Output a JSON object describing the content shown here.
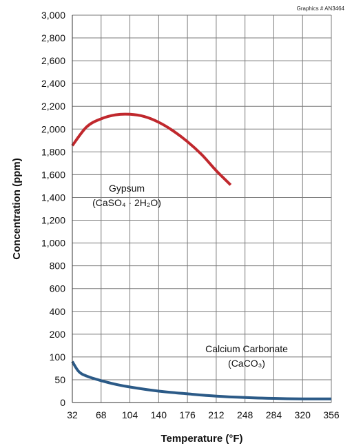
{
  "graphics_id": "Graphics # AN3464",
  "chart_data": {
    "type": "line",
    "xlabel": "Temperature (°F)",
    "ylabel": "Concentration (ppm)",
    "x_ticks": [
      32,
      68,
      104,
      140,
      176,
      212,
      248,
      284,
      320,
      356
    ],
    "xlim": [
      32,
      356
    ],
    "y_tick_labels": [
      "0",
      "50",
      "100",
      "200",
      "400",
      "600",
      "800",
      "1,000",
      "1,200",
      "1,400",
      "1,600",
      "1,800",
      "2,000",
      "2,200",
      "2,400",
      "2,600",
      "2,800",
      "3,000"
    ],
    "y_tick_values": [
      0,
      50,
      100,
      200,
      400,
      600,
      800,
      1000,
      1200,
      1400,
      1600,
      1800,
      2000,
      2200,
      2400,
      2600,
      2800,
      3000
    ],
    "y_scale_note": "piecewise axis: 0-100 in steps of 50, then 100-3,000 in steps of 200",
    "grid": true,
    "series": [
      {
        "name": "Gypsum",
        "formula": "(CaSO₄ · 2H₂O)",
        "color": "#c0282d",
        "points": [
          [
            32,
            1855
          ],
          [
            50,
            2020
          ],
          [
            68,
            2090
          ],
          [
            86,
            2125
          ],
          [
            104,
            2130
          ],
          [
            122,
            2110
          ],
          [
            140,
            2060
          ],
          [
            158,
            1985
          ],
          [
            176,
            1890
          ],
          [
            194,
            1775
          ],
          [
            212,
            1635
          ],
          [
            230,
            1510
          ]
        ]
      },
      {
        "name": "Calcium Carbonate",
        "formula": "(CaCO₃)",
        "color": "#2b5a87",
        "points": [
          [
            32,
            90
          ],
          [
            40,
            68
          ],
          [
            50,
            58
          ],
          [
            68,
            48
          ],
          [
            86,
            40
          ],
          [
            104,
            34
          ],
          [
            140,
            25
          ],
          [
            176,
            19
          ],
          [
            212,
            14
          ],
          [
            248,
            11
          ],
          [
            284,
            9
          ],
          [
            320,
            8
          ],
          [
            356,
            8
          ]
        ]
      }
    ]
  }
}
